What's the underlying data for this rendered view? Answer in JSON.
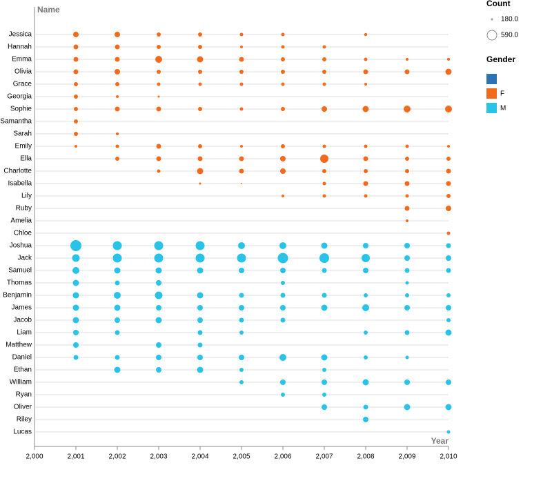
{
  "chart_data": {
    "type": "bubble",
    "y_label": "Name",
    "x_label": "Year",
    "categories": [
      "Jessica",
      "Hannah",
      "Emma",
      "Olivia",
      "Grace",
      "Georgia",
      "Sophie",
      "Samantha",
      "Sarah",
      "Emily",
      "Ella",
      "Charlotte",
      "Isabella",
      "Lily",
      "Ruby",
      "Amelia",
      "Chloe",
      "Joshua",
      "Jack",
      "Samuel",
      "Thomas",
      "Benjamin",
      "James",
      "Jacob",
      "Liam",
      "Matthew",
      "Daniel",
      "Ethan",
      "William",
      "Ryan",
      "Oliver",
      "Riley",
      "Lucas"
    ],
    "xlim": [
      2000,
      2010
    ],
    "xticks": [
      {
        "value": 2000,
        "label": "2,000"
      },
      {
        "value": 2001,
        "label": "2,001"
      },
      {
        "value": 2002,
        "label": "2,002"
      },
      {
        "value": 2003,
        "label": "2,003"
      },
      {
        "value": 2004,
        "label": "2,004"
      },
      {
        "value": 2005,
        "label": "2,005"
      },
      {
        "value": 2006,
        "label": "2,006"
      },
      {
        "value": 2007,
        "label": "2,007"
      },
      {
        "value": 2008,
        "label": "2,008"
      },
      {
        "value": 2009,
        "label": "2,009"
      },
      {
        "value": 2010,
        "label": "2,010"
      }
    ],
    "grid": true,
    "size_title": "Count",
    "size_legend": [
      {
        "value": 180,
        "label": "180.0"
      },
      {
        "value": 590,
        "label": "590.0"
      }
    ],
    "color_title": "Gender",
    "series": [
      {
        "name": null,
        "color": "#2a73b4",
        "x": [],
        "y": [],
        "values": []
      },
      {
        "name": "F",
        "color": "#f26b1d",
        "x": [
          2001,
          2002,
          2003,
          2004,
          2005,
          2006,
          2008,
          2001,
          2002,
          2003,
          2004,
          2005,
          2006,
          2007,
          2001,
          2002,
          2003,
          2004,
          2005,
          2006,
          2007,
          2008,
          2009,
          2010,
          2001,
          2002,
          2003,
          2004,
          2005,
          2006,
          2007,
          2008,
          2009,
          2010,
          2001,
          2002,
          2003,
          2004,
          2005,
          2006,
          2007,
          2008,
          2001,
          2002,
          2003,
          2001,
          2002,
          2003,
          2004,
          2005,
          2006,
          2007,
          2008,
          2009,
          2010,
          2001,
          2001,
          2002,
          2001,
          2002,
          2003,
          2004,
          2005,
          2006,
          2007,
          2008,
          2009,
          2010,
          2002,
          2003,
          2004,
          2005,
          2006,
          2007,
          2008,
          2009,
          2010,
          2003,
          2004,
          2005,
          2006,
          2007,
          2008,
          2009,
          2010,
          2004,
          2005,
          2007,
          2008,
          2009,
          2010,
          2006,
          2007,
          2008,
          2009,
          2010,
          2009,
          2010,
          2009,
          2010
        ],
        "y": [
          "Jessica",
          "Jessica",
          "Jessica",
          "Jessica",
          "Jessica",
          "Jessica",
          "Jessica",
          "Hannah",
          "Hannah",
          "Hannah",
          "Hannah",
          "Hannah",
          "Hannah",
          "Hannah",
          "Emma",
          "Emma",
          "Emma",
          "Emma",
          "Emma",
          "Emma",
          "Emma",
          "Emma",
          "Emma",
          "Emma",
          "Olivia",
          "Olivia",
          "Olivia",
          "Olivia",
          "Olivia",
          "Olivia",
          "Olivia",
          "Olivia",
          "Olivia",
          "Olivia",
          "Grace",
          "Grace",
          "Grace",
          "Grace",
          "Grace",
          "Grace",
          "Grace",
          "Grace",
          "Georgia",
          "Georgia",
          "Georgia",
          "Sophie",
          "Sophie",
          "Sophie",
          "Sophie",
          "Sophie",
          "Sophie",
          "Sophie",
          "Sophie",
          "Sophie",
          "Sophie",
          "Samantha",
          "Sarah",
          "Sarah",
          "Emily",
          "Emily",
          "Emily",
          "Emily",
          "Emily",
          "Emily",
          "Emily",
          "Emily",
          "Emily",
          "Emily",
          "Ella",
          "Ella",
          "Ella",
          "Ella",
          "Ella",
          "Ella",
          "Ella",
          "Ella",
          "Ella",
          "Charlotte",
          "Charlotte",
          "Charlotte",
          "Charlotte",
          "Charlotte",
          "Charlotte",
          "Charlotte",
          "Charlotte",
          "Isabella",
          "Isabella",
          "Isabella",
          "Isabella",
          "Isabella",
          "Isabella",
          "Lily",
          "Lily",
          "Lily",
          "Lily",
          "Lily",
          "Ruby",
          "Ruby",
          "Amelia",
          "Chloe"
        ],
        "values": [
          308,
          308,
          248,
          248,
          226,
          226,
          213,
          276,
          276,
          248,
          248,
          206,
          226,
          226,
          276,
          276,
          385,
          344,
          276,
          248,
          248,
          226,
          206,
          206,
          276,
          308,
          248,
          248,
          248,
          248,
          248,
          276,
          276,
          344,
          248,
          248,
          226,
          226,
          226,
          226,
          226,
          206,
          248,
          206,
          191,
          248,
          276,
          276,
          248,
          226,
          248,
          308,
          344,
          385,
          385,
          248,
          248,
          206,
          206,
          226,
          276,
          248,
          206,
          248,
          226,
          226,
          226,
          206,
          248,
          276,
          276,
          276,
          308,
          479,
          276,
          248,
          248,
          226,
          344,
          276,
          308,
          248,
          248,
          248,
          276,
          191,
          180,
          226,
          276,
          276,
          276,
          206,
          226,
          226,
          226,
          248,
          276,
          308,
          206,
          226
        ]
      },
      {
        "name": "M",
        "color": "#29c3e8",
        "x": [
          2001,
          2002,
          2003,
          2004,
          2005,
          2006,
          2007,
          2008,
          2009,
          2010,
          2001,
          2002,
          2003,
          2004,
          2005,
          2006,
          2007,
          2008,
          2009,
          2010,
          2001,
          2002,
          2003,
          2004,
          2005,
          2006,
          2007,
          2008,
          2009,
          2010,
          2001,
          2002,
          2003,
          2006,
          2009,
          2001,
          2002,
          2003,
          2004,
          2005,
          2006,
          2007,
          2008,
          2009,
          2010,
          2001,
          2002,
          2003,
          2004,
          2005,
          2006,
          2007,
          2008,
          2009,
          2010,
          2001,
          2002,
          2003,
          2004,
          2005,
          2006,
          2010,
          2001,
          2002,
          2004,
          2005,
          2008,
          2009,
          2010,
          2001,
          2003,
          2004,
          2001,
          2002,
          2003,
          2004,
          2005,
          2006,
          2007,
          2008,
          2009,
          2002,
          2003,
          2004,
          2005,
          2007,
          2005,
          2006,
          2007,
          2008,
          2009,
          2010,
          2006,
          2007,
          2007,
          2008,
          2009,
          2010,
          2008,
          2010
        ],
        "y": [
          "Joshua",
          "Joshua",
          "Joshua",
          "Joshua",
          "Joshua",
          "Joshua",
          "Joshua",
          "Joshua",
          "Joshua",
          "Joshua",
          "Jack",
          "Jack",
          "Jack",
          "Jack",
          "Jack",
          "Jack",
          "Jack",
          "Jack",
          "Jack",
          "Jack",
          "Samuel",
          "Samuel",
          "Samuel",
          "Samuel",
          "Samuel",
          "Samuel",
          "Samuel",
          "Samuel",
          "Samuel",
          "Samuel",
          "Thomas",
          "Thomas",
          "Thomas",
          "Thomas",
          "Thomas",
          "Benjamin",
          "Benjamin",
          "Benjamin",
          "Benjamin",
          "Benjamin",
          "Benjamin",
          "Benjamin",
          "Benjamin",
          "Benjamin",
          "Benjamin",
          "James",
          "James",
          "James",
          "James",
          "James",
          "James",
          "James",
          "James",
          "James",
          "James",
          "Jacob",
          "Jacob",
          "Jacob",
          "Jacob",
          "Jacob",
          "Jacob",
          "Jacob",
          "Liam",
          "Liam",
          "Liam",
          "Liam",
          "Liam",
          "Liam",
          "Liam",
          "Matthew",
          "Matthew",
          "Matthew",
          "Daniel",
          "Daniel",
          "Daniel",
          "Daniel",
          "Daniel",
          "Daniel",
          "Daniel",
          "Daniel",
          "Daniel",
          "Ethan",
          "Ethan",
          "Ethan",
          "Ethan",
          "Ethan",
          "William",
          "William",
          "William",
          "William",
          "William",
          "William",
          "Ryan",
          "Ryan",
          "Oliver",
          "Oliver",
          "Oliver",
          "Oliver",
          "Riley",
          "Lucas"
        ],
        "values": [
          718,
          532,
          532,
          532,
          385,
          385,
          344,
          308,
          308,
          276,
          429,
          532,
          532,
          532,
          532,
          652,
          590,
          479,
          308,
          308,
          385,
          344,
          344,
          344,
          308,
          308,
          276,
          308,
          276,
          276,
          344,
          276,
          308,
          248,
          226,
          344,
          385,
          429,
          344,
          276,
          276,
          276,
          248,
          248,
          248,
          344,
          344,
          308,
          308,
          308,
          308,
          344,
          385,
          308,
          308,
          344,
          308,
          344,
          308,
          276,
          276,
          248,
          308,
          276,
          276,
          248,
          248,
          276,
          344,
          308,
          308,
          276,
          276,
          276,
          308,
          308,
          308,
          385,
          344,
          248,
          226,
          344,
          308,
          344,
          248,
          248,
          248,
          308,
          308,
          344,
          308,
          308,
          248,
          248,
          308,
          276,
          344,
          344,
          308,
          226
        ]
      }
    ]
  }
}
